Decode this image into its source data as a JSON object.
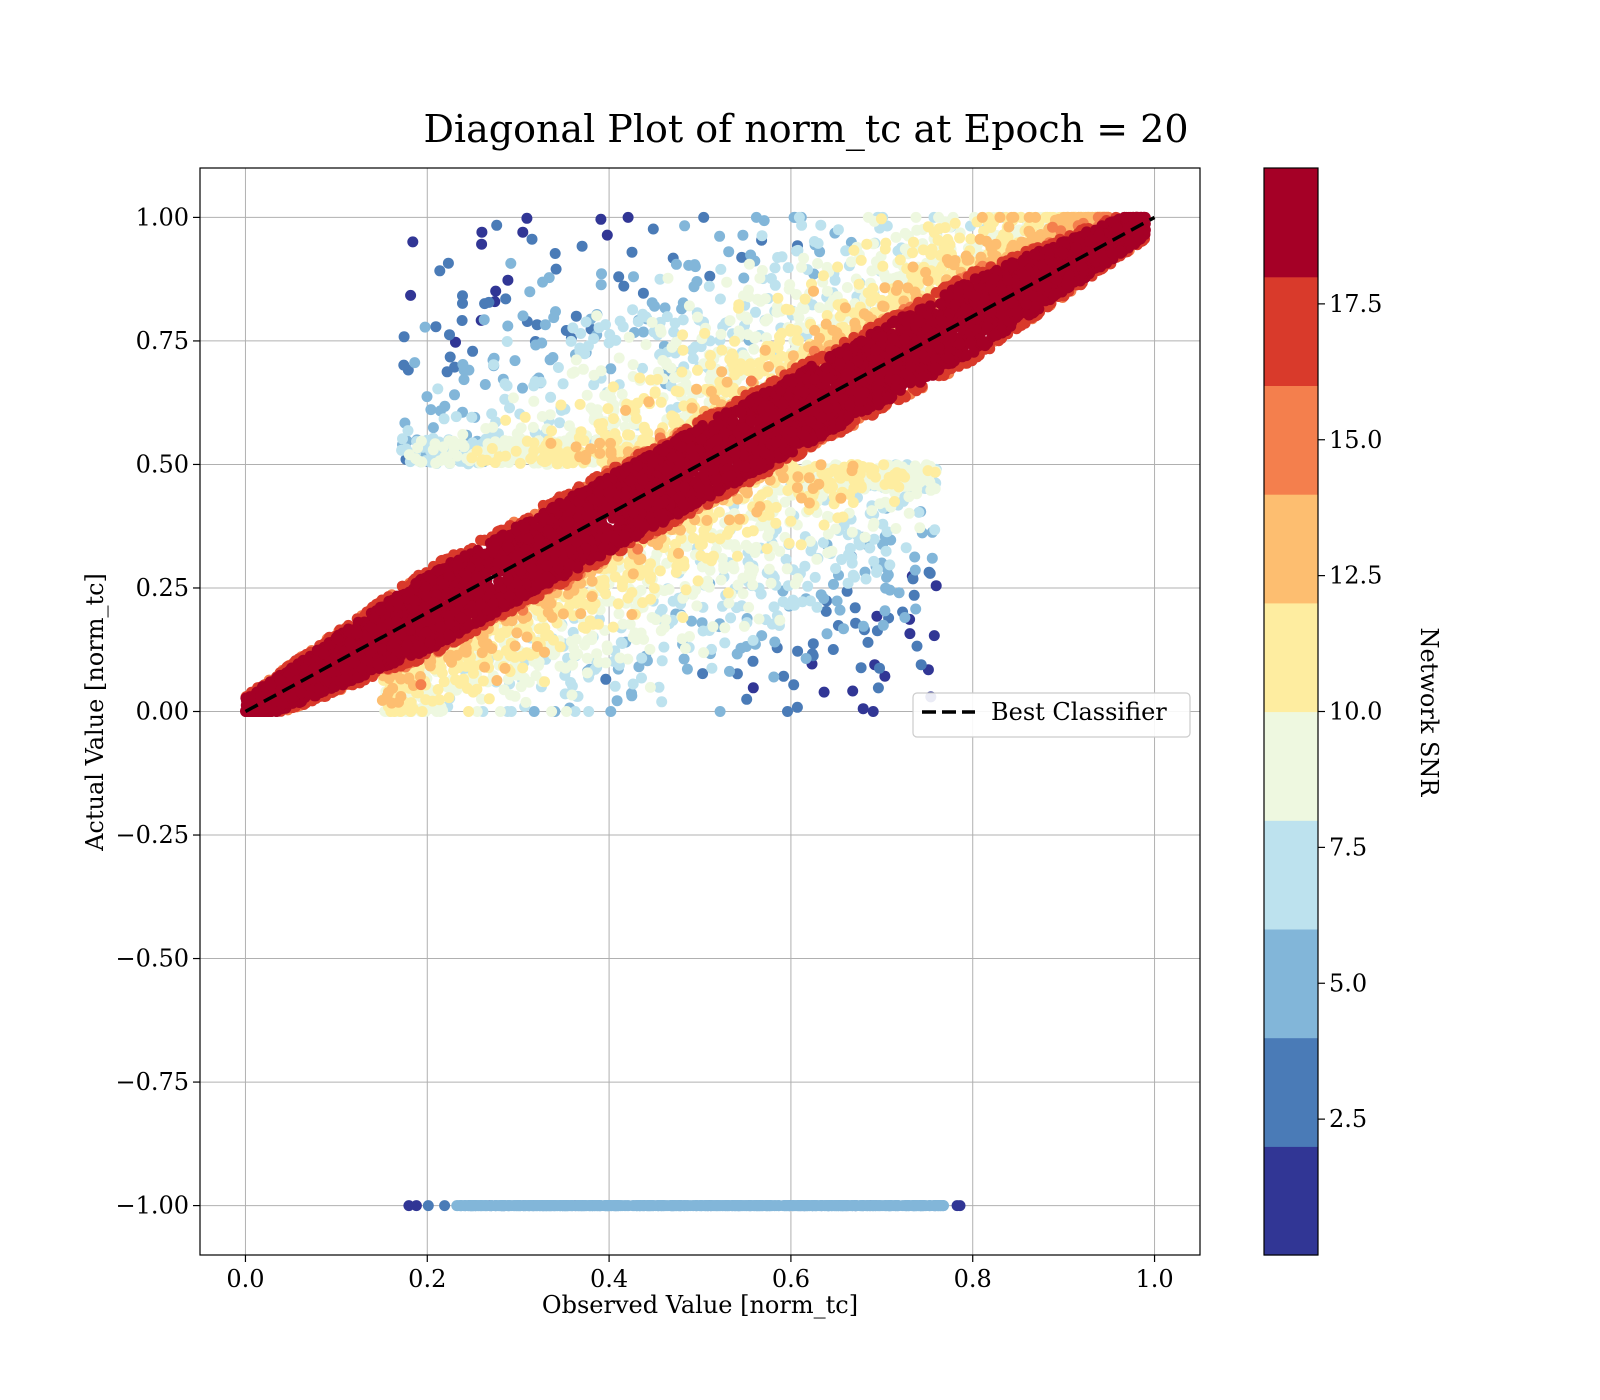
{
  "chart_data": {
    "type": "scatter",
    "title": "Diagonal Plot of norm_tc at Epoch = 20",
    "xlabel": "Observed Value [norm_tc]",
    "ylabel": "Actual Value [norm_tc]",
    "xlim": [
      -0.05,
      1.05
    ],
    "ylim": [
      -1.1,
      1.1
    ],
    "xticks": [
      0.0,
      0.2,
      0.4,
      0.6,
      0.8,
      1.0
    ],
    "xtick_labels": [
      "0.0",
      "0.2",
      "0.4",
      "0.6",
      "0.8",
      "1.0"
    ],
    "yticks": [
      1.0,
      0.75,
      0.5,
      0.25,
      0.0,
      -0.25,
      -0.5,
      -0.75,
      -1.0
    ],
    "ytick_labels": [
      "1.00",
      "0.75",
      "0.50",
      "0.25",
      "0.00",
      "−0.25",
      "−0.50",
      "−0.75",
      "−1.00"
    ],
    "grid": true,
    "reference_line": {
      "name": "Best Classifier",
      "x": [
        0.0,
        1.0
      ],
      "y": [
        0.0,
        1.0
      ],
      "color": "#000000",
      "style": "dashed"
    },
    "legend": {
      "placement": "center-right",
      "entries": [
        "Best Classifier"
      ]
    },
    "points_summary": {
      "high_snr_band": {
        "snr_min": 16,
        "around_line": "y = x",
        "half_width": 0.09,
        "x_range": [
          0.0,
          0.99
        ]
      },
      "low_snr_upper_cloud": {
        "x_range": [
          0.17,
          0.99
        ],
        "y_range": [
          0.5,
          1.0
        ]
      },
      "low_snr_lower_cloud": {
        "x_range": [
          0.15,
          0.76
        ],
        "y_range": [
          0.0,
          0.5
        ]
      },
      "failed_row": {
        "y": -1.0,
        "x_range": [
          0.165,
          0.835
        ]
      }
    },
    "colorbar": {
      "label": "Network SNR",
      "vmin": 0.0,
      "vmax": 20.0,
      "ticks": [
        2.5,
        5.0,
        7.5,
        10.0,
        12.5,
        15.0,
        17.5
      ],
      "tick_labels": [
        "2.5",
        "5.0",
        "7.5",
        "10.0",
        "12.5",
        "15.0",
        "17.5"
      ],
      "colors": [
        "#313695",
        "#4a7bb7",
        "#82b6d9",
        "#bde2ee",
        "#eef8e0",
        "#feeda0",
        "#fdbe70",
        "#f47f4d",
        "#d93a2b",
        "#a50026"
      ]
    }
  }
}
